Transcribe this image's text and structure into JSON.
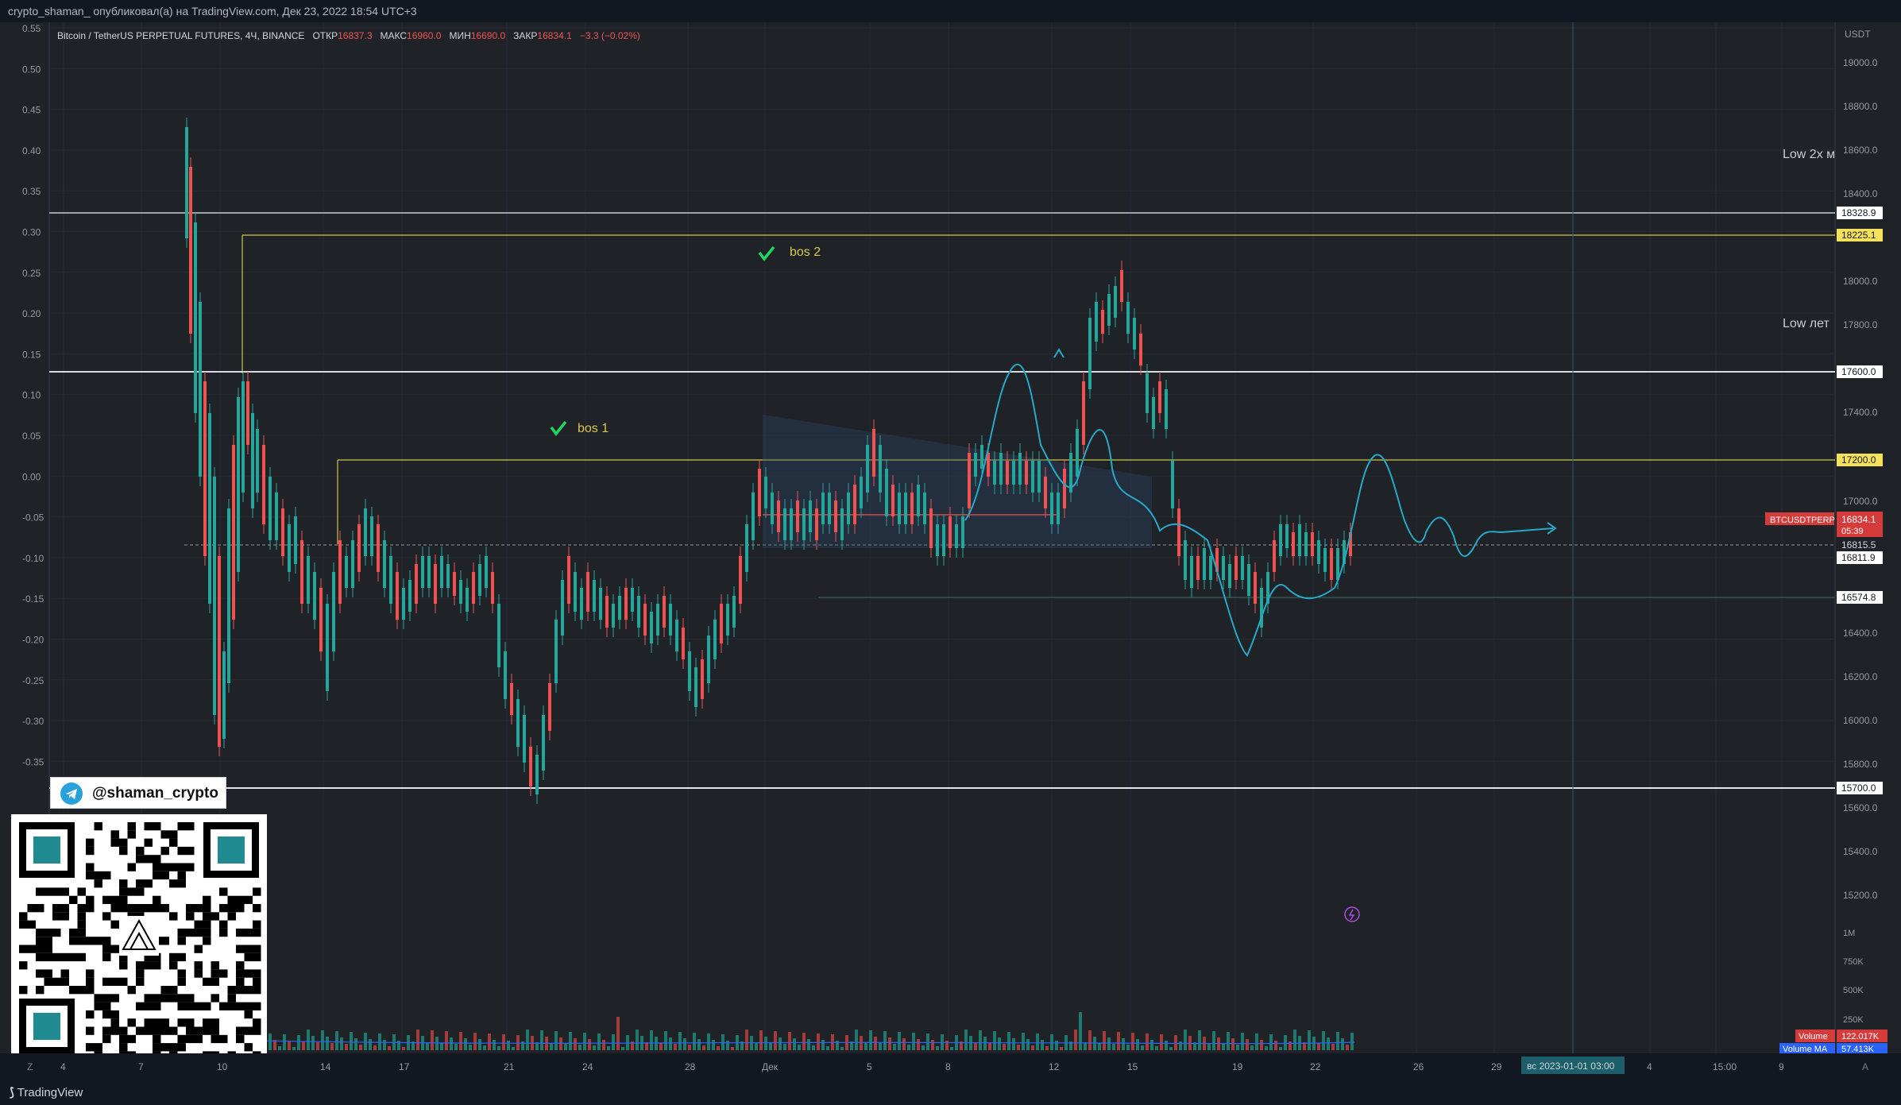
{
  "header": {
    "publish_line": "crypto_shaman_ опубликовал(а) на TradingView.com, Дек 23, 2022 18:54 UTC+3"
  },
  "legend": {
    "symbol": "Bitcoin / TetherUS PERPETUAL FUTURES, 4Ч, BINANCE",
    "open_label": "ОТКР",
    "open": "16837.3",
    "high_label": "МАКС",
    "high": "16960.0",
    "low_label": "МИН",
    "low": "16690.0",
    "close_label": "ЗАКР",
    "close": "16834.1",
    "change": "−3.3 (−0.02%)"
  },
  "annotations": {
    "bos1": "bos 1",
    "bos2": "bos 2",
    "low2x": "Low 2x м",
    "low_let": "Low лет"
  },
  "telegram": {
    "handle": "@shaman_crypto"
  },
  "right_axis": {
    "currency": "USDT",
    "ticks": [
      "19000.0",
      "18800.0",
      "18600.0",
      "18400.0",
      "18000.0",
      "17800.0",
      "17400.0",
      "17000.0",
      "16400.0",
      "16200.0",
      "16000.0",
      "15800.0",
      "15600.0",
      "15400.0",
      "15200.0"
    ],
    "badges": [
      {
        "label": "18328.9",
        "style": "white"
      },
      {
        "label": "18225.1",
        "style": "yellow"
      },
      {
        "label": "17600.0",
        "style": "white"
      },
      {
        "label": "17200.0",
        "style": "yellow"
      },
      {
        "label": "16811.9",
        "style": "white"
      },
      {
        "label": "16574.8",
        "style": "white"
      },
      {
        "label": "15700.0",
        "style": "white"
      },
      {
        "label": "16815.5",
        "style": "plain"
      }
    ],
    "symbol_badge": "BTCUSDTPERP",
    "price_badge": "16834.1",
    "countdown": "05:39",
    "volume_ticks": [
      "1M",
      "750K",
      "500K",
      "250K"
    ],
    "volume_label": "Volume",
    "volume_value": "122.017K",
    "volume_ma_label": "Volume MA",
    "volume_ma_value": "57.413K"
  },
  "left_axis": {
    "ticks": [
      "0.55",
      "0.50",
      "0.45",
      "0.40",
      "0.35",
      "0.30",
      "0.25",
      "0.20",
      "0.15",
      "0.10",
      "0.05",
      "0.00",
      "-0.05",
      "-0.10",
      "-0.15",
      "-0.20",
      "-0.25",
      "-0.30",
      "-0.35"
    ]
  },
  "time_axis": {
    "labels": [
      "4",
      "7",
      "10",
      "14",
      "17",
      "21",
      "24",
      "28",
      "Дек",
      "5",
      "8",
      "12",
      "15",
      "19",
      "22",
      "26",
      "29",
      "4",
      "15:00",
      "9"
    ],
    "highlight": "вс 2023-01-01   03:00",
    "corner_left": "Z",
    "corner_right": "A"
  },
  "footer": {
    "brand": "TradingView"
  }
}
